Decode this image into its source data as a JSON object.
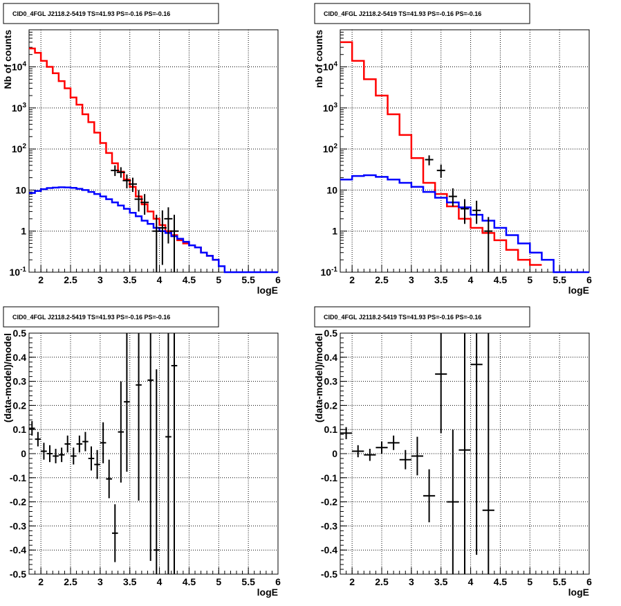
{
  "chart_data": [
    {
      "type": "line",
      "title": "CID0_4FGL J2118.2-5419 TS=41.93 PS=-0.16 PS=-0.16",
      "xlabel": "logE",
      "ylabel": "Nb of counts",
      "log_y": true,
      "xlim": [
        1.8,
        6.0
      ],
      "ylim": [
        0.1,
        80000
      ],
      "grid": true,
      "x_ticks": [
        "2",
        "2.5",
        "3",
        "3.5",
        "4",
        "4.5",
        "5",
        "5.5",
        "6"
      ],
      "y_ticks": [
        "10^-1",
        "1",
        "10",
        "10^2",
        "10^3",
        "10^4"
      ],
      "series": [
        {
          "color": "#ff0000",
          "kind": "step",
          "bin_edges": [
            1.8,
            1.9,
            2.0,
            2.1,
            2.2,
            2.3,
            2.4,
            2.5,
            2.6,
            2.7,
            2.8,
            2.9,
            3.0,
            3.1,
            3.2,
            3.3,
            3.4,
            3.5,
            3.6,
            3.7,
            3.8,
            3.9,
            4.0,
            4.1,
            4.2,
            4.3,
            4.4,
            4.5,
            4.6,
            4.7,
            4.8,
            4.9,
            5.0
          ],
          "values": [
            28000,
            22000,
            14000,
            10000,
            7000,
            4500,
            3000,
            1800,
            1200,
            700,
            450,
            250,
            140,
            80,
            45,
            28,
            18,
            12,
            7,
            4.5,
            3,
            2,
            1.4,
            1.0,
            0.8,
            0.6,
            0.5,
            0.45,
            0.4,
            0.3,
            0.25,
            0.2
          ]
        },
        {
          "color": "#0000ff",
          "kind": "step",
          "bin_edges": [
            1.8,
            1.9,
            2.0,
            2.1,
            2.2,
            2.3,
            2.4,
            2.5,
            2.6,
            2.7,
            2.8,
            2.9,
            3.0,
            3.1,
            3.2,
            3.3,
            3.4,
            3.5,
            3.6,
            3.7,
            3.8,
            3.9,
            4.0,
            4.1,
            4.2,
            4.3,
            4.4,
            4.5,
            4.6,
            4.7,
            4.8,
            4.9,
            5.0,
            5.1,
            5.2,
            5.3,
            5.4,
            5.5,
            5.6,
            5.7,
            5.8,
            5.9,
            6.0
          ],
          "values": [
            8.5,
            9.5,
            10.5,
            11.2,
            11.5,
            11.7,
            11.6,
            11.3,
            10.7,
            10.0,
            9.0,
            8.0,
            7.0,
            6.0,
            5.0,
            4.2,
            3.5,
            2.8,
            2.3,
            1.8,
            1.5,
            1.2,
            1.0,
            0.9,
            0.75,
            0.65,
            0.55,
            0.45,
            0.4,
            0.3,
            0.25,
            0.2,
            0.14,
            0.1,
            0.1,
            0.1,
            0.1,
            0.1,
            0.1,
            0.1,
            0.1,
            0.1
          ]
        },
        {
          "color": "#000000",
          "kind": "points",
          "points": [
            {
              "x": 3.25,
              "y": 30,
              "ylo": 22,
              "yhi": 40
            },
            {
              "x": 3.35,
              "y": 27,
              "ylo": 20,
              "yhi": 36
            },
            {
              "x": 3.45,
              "y": 17,
              "ylo": 11,
              "yhi": 24
            },
            {
              "x": 3.55,
              "y": 14,
              "ylo": 9,
              "yhi": 20
            },
            {
              "x": 3.65,
              "y": 6,
              "ylo": 3,
              "yhi": 10
            },
            {
              "x": 3.75,
              "y": 5,
              "ylo": 2.5,
              "yhi": 8
            },
            {
              "x": 3.95,
              "y": 1,
              "ylo": 0.1,
              "yhi": 2.5
            },
            {
              "x": 4.05,
              "y": 1.2,
              "ylo": 0.15,
              "yhi": 3.2
            },
            {
              "x": 4.15,
              "y": 2,
              "ylo": 0.5,
              "yhi": 3.8
            },
            {
              "x": 4.25,
              "y": 1,
              "ylo": 0.1,
              "yhi": 2.5
            }
          ]
        }
      ]
    },
    {
      "type": "line",
      "title": "CID0_4FGL J2118.2-5419 TS=41.93 PS=-0.16 PS=-0.16",
      "xlabel": "logE",
      "ylabel": "nb of counts",
      "log_y": true,
      "xlim": [
        1.8,
        6.0
      ],
      "ylim": [
        0.1,
        80000
      ],
      "grid": true,
      "x_ticks": [
        "2",
        "2.5",
        "3",
        "3.5",
        "4",
        "4.5",
        "5",
        "5.5",
        "6"
      ],
      "y_ticks": [
        "10^-1",
        "1",
        "10",
        "10^2",
        "10^3",
        "10^4"
      ],
      "series": [
        {
          "color": "#ff0000",
          "kind": "step",
          "bin_edges": [
            1.8,
            2.0,
            2.2,
            2.4,
            2.6,
            2.8,
            3.0,
            3.2,
            3.4,
            3.6,
            3.8,
            4.0,
            4.2,
            4.4,
            4.6,
            4.8,
            5.0,
            5.2
          ],
          "values": [
            40000,
            14000,
            5000,
            2000,
            700,
            220,
            60,
            15,
            8,
            4,
            2,
            1.2,
            0.9,
            0.6,
            0.35,
            0.2,
            0.15
          ]
        },
        {
          "color": "#0000ff",
          "kind": "step",
          "bin_edges": [
            1.8,
            2.0,
            2.2,
            2.4,
            2.6,
            2.8,
            3.0,
            3.2,
            3.4,
            3.6,
            3.8,
            4.0,
            4.2,
            4.4,
            4.6,
            4.8,
            5.0,
            5.2,
            5.4,
            5.6,
            5.8,
            6.0
          ],
          "values": [
            18,
            22,
            23,
            21,
            18,
            15,
            12,
            9,
            6.5,
            5,
            3.8,
            2.5,
            1.8,
            1.2,
            0.8,
            0.5,
            0.3,
            0.2,
            0.1,
            0.1,
            0.1
          ]
        },
        {
          "color": "#000000",
          "kind": "points",
          "points": [
            {
              "x": 3.3,
              "y": 55,
              "ylo": 40,
              "yhi": 70
            },
            {
              "x": 3.5,
              "y": 30,
              "ylo": 20,
              "yhi": 42
            },
            {
              "x": 3.7,
              "y": 7,
              "ylo": 4,
              "yhi": 11
            },
            {
              "x": 3.9,
              "y": 3.5,
              "ylo": 1.5,
              "yhi": 6
            },
            {
              "x": 4.1,
              "y": 3.2,
              "ylo": 1.5,
              "yhi": 5.5
            },
            {
              "x": 4.3,
              "y": 1,
              "ylo": 0.1,
              "yhi": 2.2
            }
          ]
        }
      ]
    },
    {
      "type": "scatter",
      "title": "CID0_4FGL J2118.2-5419 TS=41.93 PS=-0.16 PS=-0.16",
      "xlabel": "logE",
      "ylabel": "(data-model)/model",
      "xlim": [
        1.8,
        6.0
      ],
      "ylim": [
        -0.5,
        0.5
      ],
      "grid": true,
      "x_ticks": [
        "2",
        "2.5",
        "3",
        "3.5",
        "4",
        "4.5",
        "5",
        "5.5",
        "6"
      ],
      "y_ticks": [
        "-0.5",
        "-0.4",
        "-0.3",
        "-0.2",
        "-0.1",
        "0",
        "0.1",
        "0.2",
        "0.3",
        "0.4",
        "0.5"
      ],
      "points": [
        {
          "x": 1.85,
          "y": 0.105,
          "err": 0.03,
          "xerr": 0.05
        },
        {
          "x": 1.95,
          "y": 0.06,
          "err": 0.03,
          "xerr": 0.05
        },
        {
          "x": 2.05,
          "y": 0.01,
          "err": 0.035,
          "xerr": 0.05
        },
        {
          "x": 2.15,
          "y": 0.0,
          "err": 0.035,
          "xerr": 0.05
        },
        {
          "x": 2.25,
          "y": -0.01,
          "err": 0.03,
          "xerr": 0.05
        },
        {
          "x": 2.35,
          "y": -0.005,
          "err": 0.03,
          "xerr": 0.05
        },
        {
          "x": 2.45,
          "y": 0.04,
          "err": 0.035,
          "xerr": 0.05
        },
        {
          "x": 2.55,
          "y": -0.01,
          "err": 0.035,
          "xerr": 0.05
        },
        {
          "x": 2.65,
          "y": 0.04,
          "err": 0.035,
          "xerr": 0.05
        },
        {
          "x": 2.75,
          "y": 0.05,
          "err": 0.04,
          "xerr": 0.05
        },
        {
          "x": 2.85,
          "y": -0.02,
          "err": 0.05,
          "xerr": 0.05
        },
        {
          "x": 2.95,
          "y": -0.045,
          "err": 0.06,
          "xerr": 0.05
        },
        {
          "x": 3.05,
          "y": 0.045,
          "err": 0.085,
          "xerr": 0.05
        },
        {
          "x": 3.15,
          "y": -0.105,
          "err": 0.08,
          "xerr": 0.05
        },
        {
          "x": 3.25,
          "y": -0.33,
          "err": 0.12,
          "xerr": 0.05
        },
        {
          "x": 3.35,
          "y": 0.09,
          "err": 0.21,
          "xerr": 0.05
        },
        {
          "x": 3.45,
          "y": 0.215,
          "err": 0.29,
          "xerr": 0.05
        },
        {
          "x": 3.65,
          "y": 0.285,
          "err": 0.48,
          "xerr": 0.05
        },
        {
          "x": 3.85,
          "y": 0.305,
          "err": 0.75,
          "xerr": 0.05
        },
        {
          "x": 3.95,
          "y": -0.4,
          "err": 0.75,
          "xerr": 0.05
        },
        {
          "x": 4.15,
          "y": 0.07,
          "err": 0.75,
          "xerr": 0.05
        },
        {
          "x": 4.25,
          "y": 0.365,
          "err": 0.9,
          "xerr": 0.05
        }
      ]
    },
    {
      "type": "scatter",
      "title": "CID0_4FGL J2118.2-5419 TS=41.93 PS=-0.16 PS=-0.16",
      "xlabel": "logE",
      "ylabel": "(data-model)/model",
      "xlim": [
        1.8,
        6.0
      ],
      "ylim": [
        -0.5,
        0.5
      ],
      "grid": true,
      "x_ticks": [
        "2",
        "2.5",
        "3",
        "3.5",
        "4",
        "4.5",
        "5",
        "5.5",
        "6"
      ],
      "y_ticks": [
        "-0.5",
        "-0.4",
        "-0.3",
        "-0.2",
        "-0.1",
        "0",
        "0.1",
        "0.2",
        "0.3",
        "0.4",
        "0.5"
      ],
      "points": [
        {
          "x": 1.9,
          "y": 0.085,
          "err": 0.025,
          "xerr": 0.1
        },
        {
          "x": 2.1,
          "y": 0.01,
          "err": 0.025,
          "xerr": 0.1
        },
        {
          "x": 2.3,
          "y": -0.005,
          "err": 0.025,
          "xerr": 0.1
        },
        {
          "x": 2.5,
          "y": 0.025,
          "err": 0.025,
          "xerr": 0.1
        },
        {
          "x": 2.7,
          "y": 0.045,
          "err": 0.03,
          "xerr": 0.1
        },
        {
          "x": 2.9,
          "y": -0.025,
          "err": 0.04,
          "xerr": 0.1
        },
        {
          "x": 3.1,
          "y": -0.01,
          "err": 0.08,
          "xerr": 0.1
        },
        {
          "x": 3.3,
          "y": -0.175,
          "err": 0.11,
          "xerr": 0.1
        },
        {
          "x": 3.5,
          "y": 0.33,
          "err": 0.245,
          "xerr": 0.1
        },
        {
          "x": 3.7,
          "y": -0.2,
          "err": 0.3,
          "xerr": 0.1
        },
        {
          "x": 3.9,
          "y": 0.015,
          "err": 0.55,
          "xerr": 0.1
        },
        {
          "x": 4.1,
          "y": 0.37,
          "err": 0.79,
          "xerr": 0.1
        },
        {
          "x": 4.3,
          "y": -0.235,
          "err": 0.75,
          "xerr": 0.1
        }
      ]
    }
  ]
}
